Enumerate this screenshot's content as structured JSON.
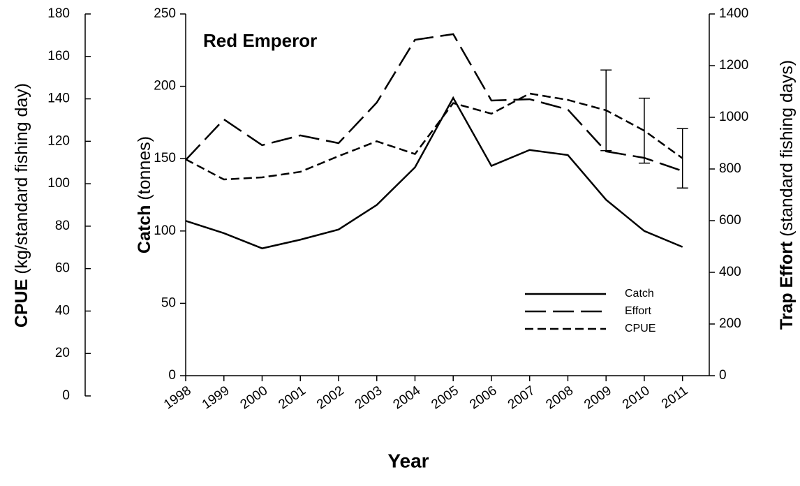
{
  "chart_data": {
    "type": "line",
    "title": "Red Emperor",
    "x_label": "Year",
    "y_label_bold": "Catch",
    "y_label": "(tonnes)",
    "y2_label_bold": "Trap Effort",
    "y2_label": "(standard fishing days)",
    "y3_label_bold": "CPUE",
    "y3_label": "(kg/standard fishing day)",
    "x": [
      1998,
      1999,
      2000,
      2001,
      2002,
      2003,
      2004,
      2005,
      2006,
      2007,
      2008,
      2009,
      2010,
      2011
    ],
    "xlim": [
      1998,
      2011.7
    ],
    "xticks": [
      1998,
      1999,
      2000,
      2001,
      2002,
      2003,
      2004,
      2005,
      2006,
      2007,
      2008,
      2009,
      2010,
      2011
    ],
    "ylim": [
      0,
      250
    ],
    "yticks": [
      0,
      50,
      100,
      150,
      200,
      250
    ],
    "y2lim": [
      0,
      1400
    ],
    "y2ticks": [
      0,
      200,
      400,
      600,
      800,
      1000,
      1200,
      1400
    ],
    "y3lim": [
      0,
      180
    ],
    "y3ticks": [
      0,
      20,
      40,
      60,
      80,
      100,
      120,
      140,
      160,
      180
    ],
    "legend": "lower right",
    "series": [
      {
        "name": "Catch",
        "color": "#000000",
        "dash": "solid",
        "values": [
          107,
          98.5,
          88,
          94,
          101,
          118,
          144,
          192,
          145,
          156,
          152.5,
          121.6,
          100,
          89
        ]
      },
      {
        "name": "Effort",
        "color": "#000000",
        "dash": "long",
        "axis": "y2",
        "values": [
          835,
          992,
          892,
          930,
          900,
          1057,
          1300,
          1322,
          1065,
          1070,
          1030,
          868,
          843,
          792
        ]
      },
      {
        "name": "CPUE",
        "color": "#000000",
        "dash": "short",
        "axis": "y3",
        "values": [
          111.5,
          102,
          103,
          105.6,
          113,
          120,
          114,
          138,
          133,
          142.5,
          139.5,
          134.6,
          125,
          112
        ],
        "errors": [
          null,
          null,
          null,
          null,
          null,
          null,
          null,
          null,
          null,
          null,
          null,
          19,
          15.3,
          14
        ]
      }
    ]
  }
}
